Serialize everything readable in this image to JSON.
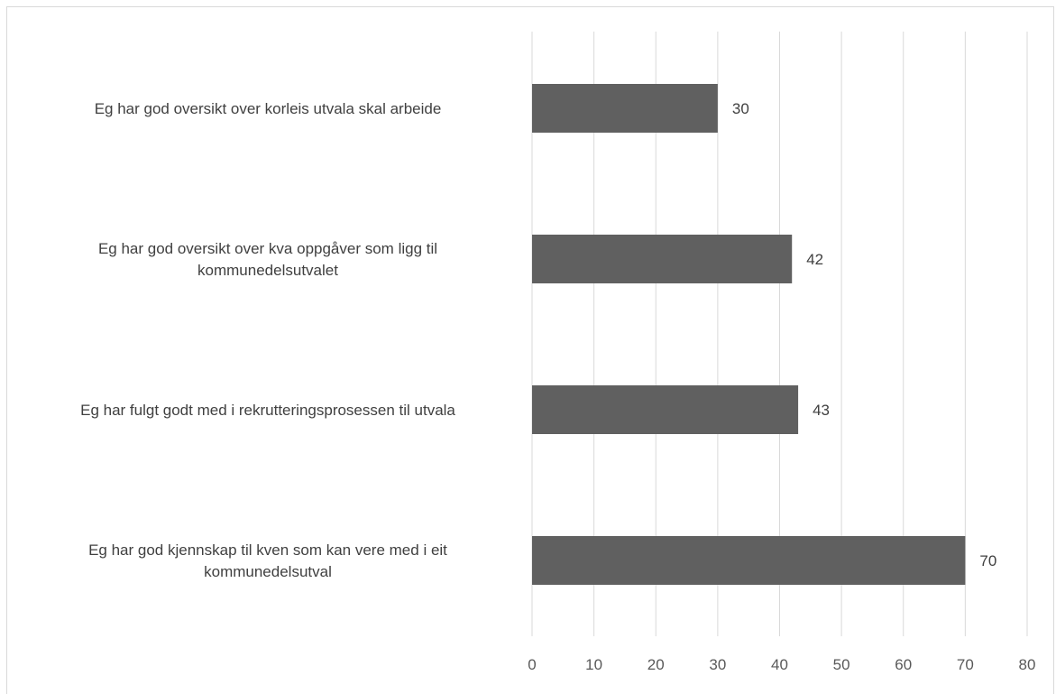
{
  "chart_data": {
    "type": "bar",
    "orientation": "horizontal",
    "categories": [
      "Eg har god oversikt over korleis utvala skal arbeide",
      "Eg har god oversikt over kva oppgåver som ligg til kommunedelsutvalet",
      "Eg har fulgt godt med i rekrutteringsprosessen til utvala",
      "Eg har god kjennskap til kven som kan vere med i eit kommunedelsutval"
    ],
    "category_lines": [
      [
        "Eg har god oversikt over korleis utvala skal arbeide"
      ],
      [
        "Eg har god oversikt over kva oppgåver som ligg til",
        "kommunedelsutvalet"
      ],
      [
        "Eg har fulgt godt med i rekrutteringsprosessen til utvala"
      ],
      [
        "Eg har god kjennskap til kven som kan vere med i eit",
        "kommunedelsutval"
      ]
    ],
    "values": [
      30,
      42,
      43,
      70
    ],
    "data_labels": [
      "30",
      "42",
      "43",
      "70"
    ],
    "xlim": [
      0,
      80
    ],
    "xticks": [
      "0",
      "10",
      "20",
      "30",
      "40",
      "50",
      "60",
      "70",
      "80"
    ],
    "grid": true,
    "legend": "none",
    "bar_color": "#606060"
  }
}
